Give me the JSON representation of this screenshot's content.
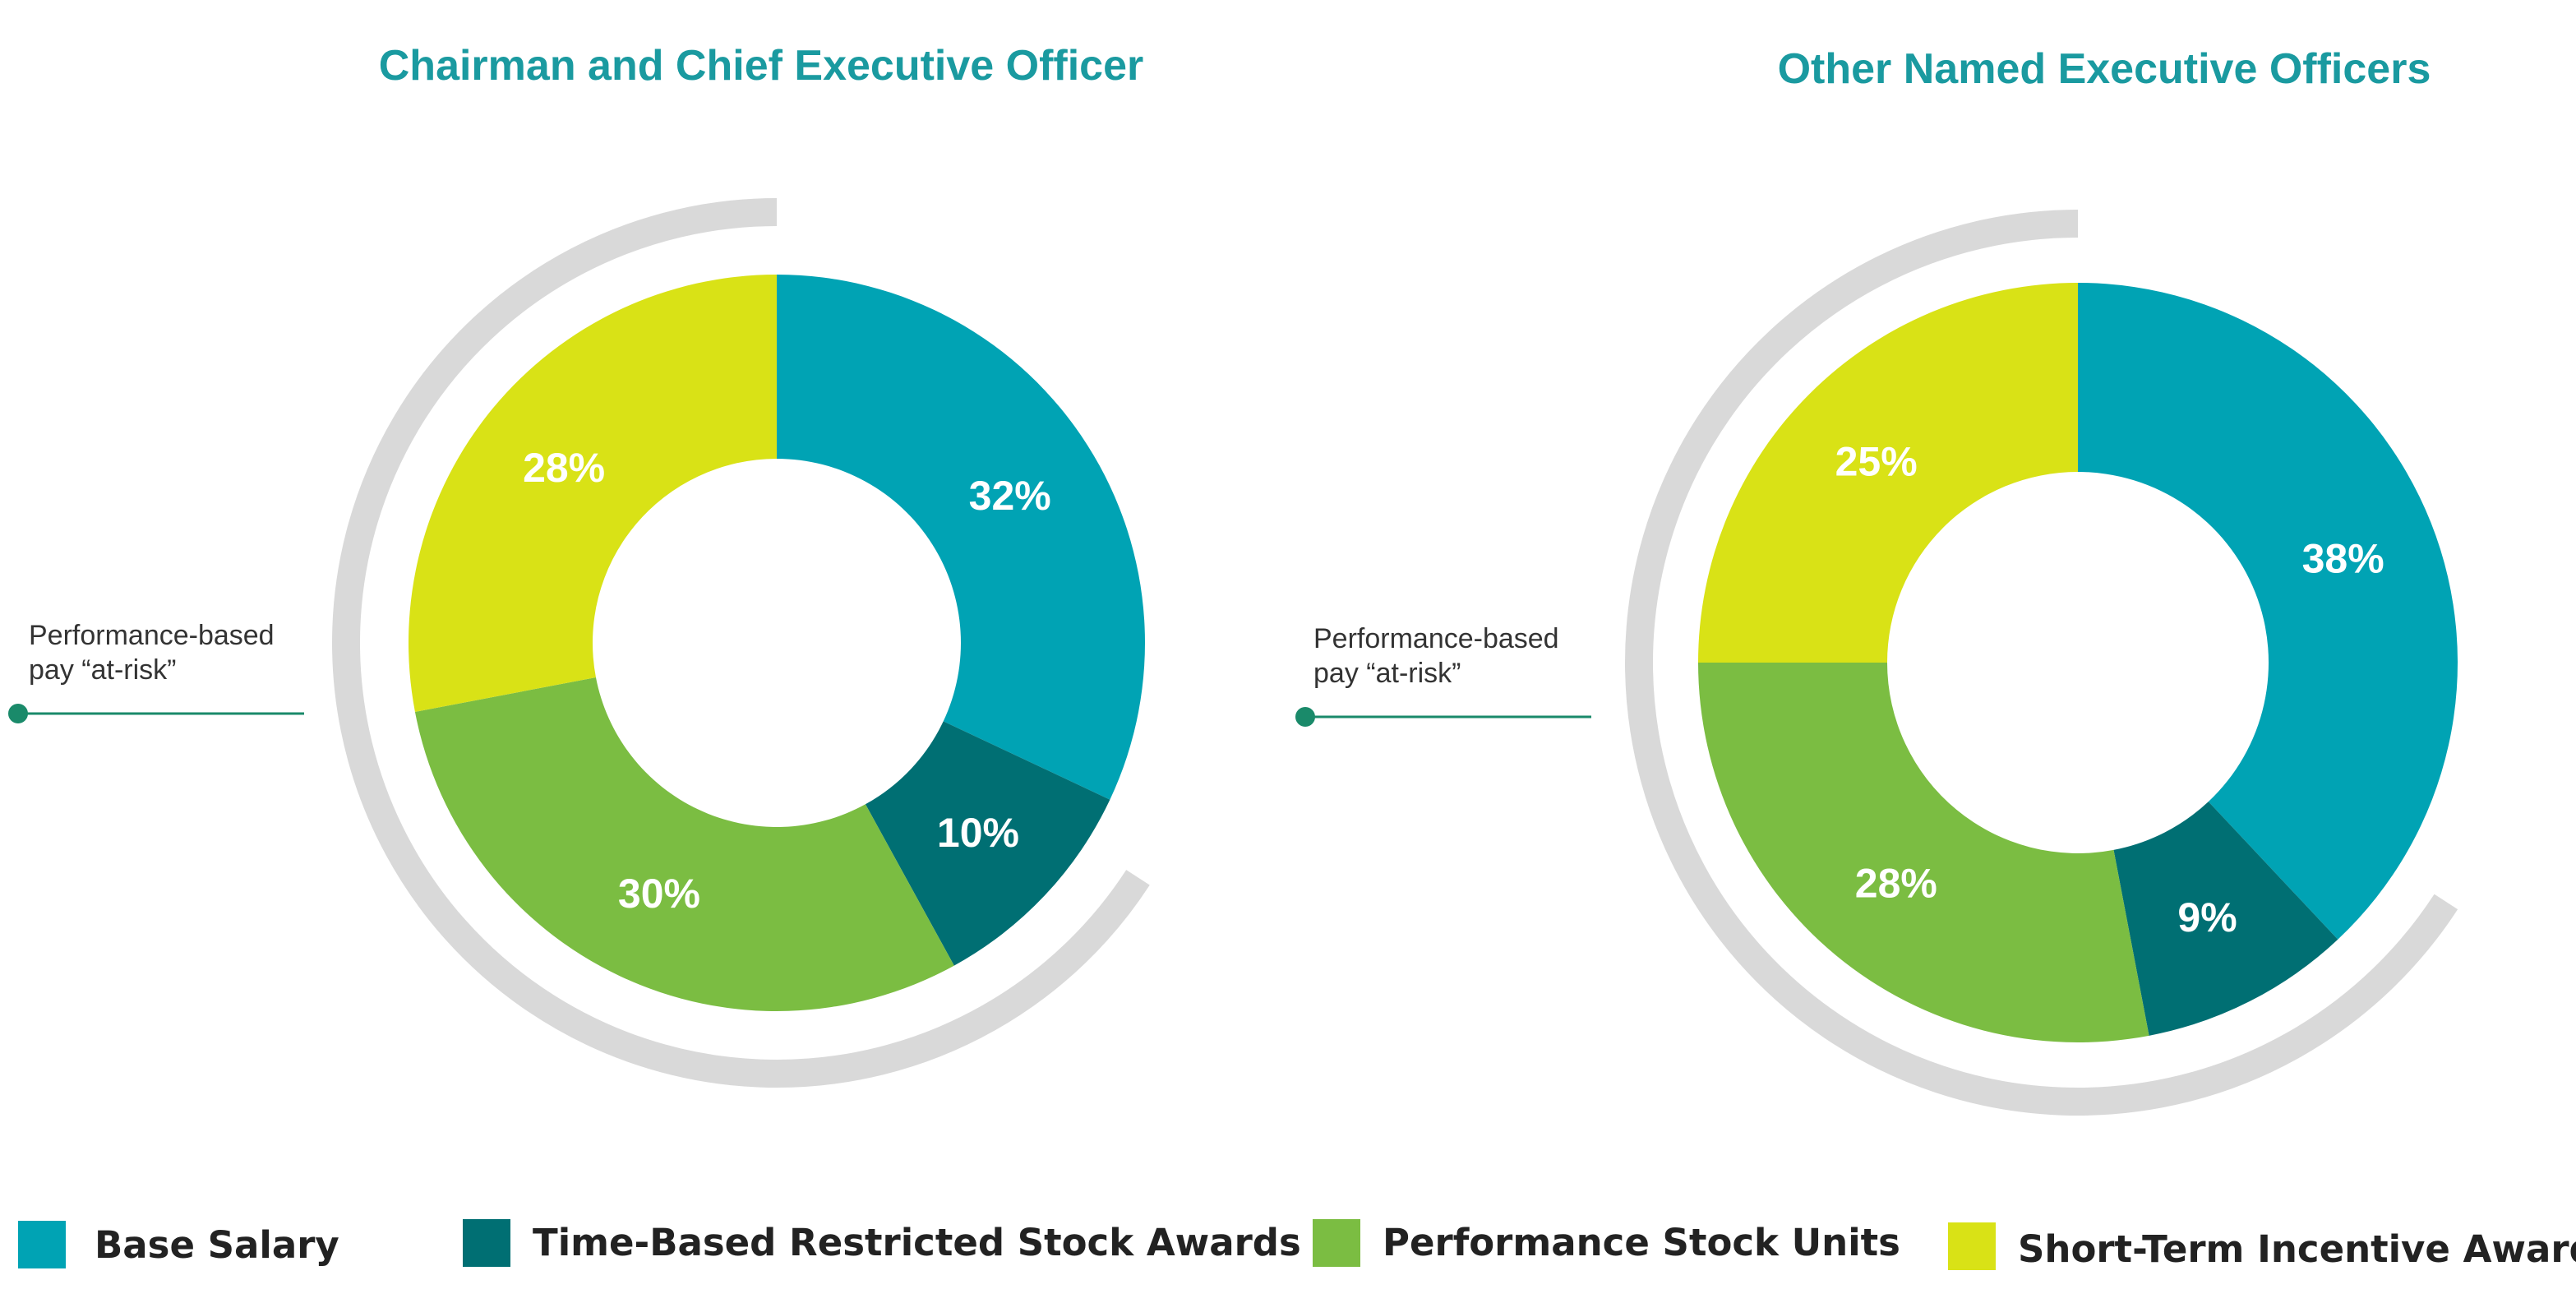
{
  "chart_data": [
    {
      "type": "donut",
      "title": "Chairman and Chief Executive Officer",
      "slices": [
        {
          "category": "Base Salary",
          "value": 32,
          "label": "32%"
        },
        {
          "category": "Time-Based Restricted Stock Awards",
          "value": 10,
          "label": "10%"
        },
        {
          "category": "Performance Stock Units",
          "value": 30,
          "label": "30%"
        },
        {
          "category": "Short-Term Incentive Awards",
          "value": 28,
          "label": "28%"
        }
      ],
      "annotation": {
        "line1": "Performance-based",
        "line2": "pay “at-risk”"
      }
    },
    {
      "type": "donut",
      "title": "Other Named Executive Officers",
      "slices": [
        {
          "category": "Base Salary",
          "value": 38,
          "label": "38%"
        },
        {
          "category": "Time-Based Restricted Stock Awards",
          "value": 9,
          "label": "9%"
        },
        {
          "category": "Performance Stock Units",
          "value": 28,
          "label": "28%"
        },
        {
          "category": "Short-Term Incentive Awards",
          "value": 25,
          "label": "25%"
        }
      ],
      "annotation": {
        "line1": "Performance-based",
        "line2": "pay “at-risk”"
      }
    }
  ],
  "legend": [
    {
      "label": "Base Salary",
      "color": "#00a3b4"
    },
    {
      "label": "Time-Based Restricted Stock Awards",
      "color": "#006f73"
    },
    {
      "label": "Performance Stock Units",
      "color": "#7bbd42"
    },
    {
      "label": "Short-Term Incentive Awards",
      "color": "#d9e216"
    }
  ],
  "colors": {
    "title": "#1a9aa0",
    "arc": "#d9d9d9",
    "annotation_line": "#1a8a6a"
  }
}
